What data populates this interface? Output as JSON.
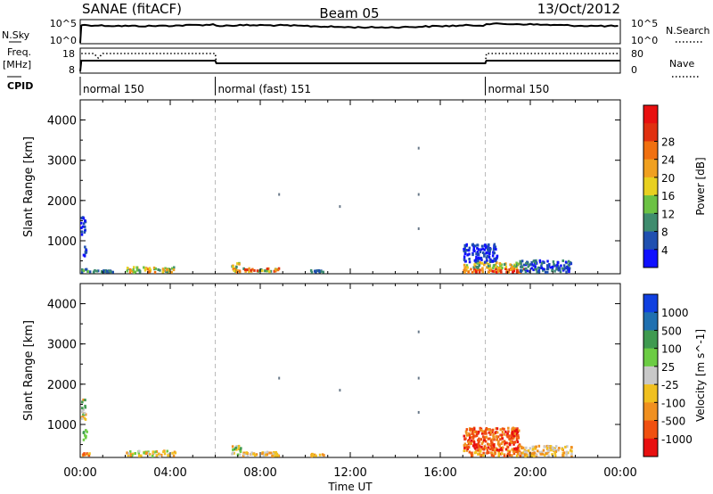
{
  "header": {
    "station": "SANAE (fitACF)",
    "beam": "Beam 05",
    "date": "13/Oct/2012"
  },
  "strip1": {
    "left_label": "N.Sky",
    "right_label": "N.Search",
    "left_ticks": [
      "10^5",
      "10^0"
    ],
    "right_ticks": [
      "10^5",
      "10^0"
    ]
  },
  "strip2": {
    "left_label_1": "Freq.",
    "left_label_2": "[MHz]",
    "right_label": "Nave",
    "left_ticks": [
      "18",
      "8"
    ],
    "right_ticks": [
      "80",
      "0"
    ]
  },
  "cpid": {
    "label": "CPID",
    "segments": [
      {
        "name": "normal 150",
        "start_h": 0,
        "end_h": 6
      },
      {
        "name": "normal (fast) 151",
        "start_h": 6,
        "end_h": 18
      },
      {
        "name": "normal 150",
        "start_h": 18,
        "end_h": 24
      }
    ]
  },
  "chart_data": [
    {
      "type": "heatmap",
      "quantity": "power",
      "ylabel": "Slant Range [km]",
      "ylim": [
        180,
        4500
      ],
      "xlim": [
        0,
        24
      ],
      "yticks": [
        "1000",
        "2000",
        "3000",
        "4000"
      ],
      "colorbar_label": "Power [dB]",
      "colorbar_ticks": [
        "4",
        "8",
        "12",
        "16",
        "20",
        "24",
        "28"
      ],
      "colors": [
        "#1010ff",
        "#2050b0",
        "#3f8c6e",
        "#6cc244",
        "#e8d020",
        "#f0a020",
        "#f07010",
        "#e03010",
        "#e81010"
      ],
      "blobs": [
        {
          "x0": 0.0,
          "x1": 0.4,
          "r0": 200,
          "r1": 280,
          "levels": [
            1,
            3
          ]
        },
        {
          "x0": 0.1,
          "x1": 0.3,
          "r0": 600,
          "r1": 850,
          "levels": [
            0,
            1
          ]
        },
        {
          "x0": 0.0,
          "x1": 0.2,
          "r0": 1100,
          "r1": 1600,
          "levels": [
            0,
            1
          ]
        },
        {
          "x0": 0.5,
          "x1": 1.5,
          "r0": 200,
          "r1": 250,
          "levels": [
            1,
            2
          ]
        },
        {
          "x0": 2.0,
          "x1": 4.2,
          "r0": 200,
          "r1": 330,
          "levels": [
            2,
            6
          ]
        },
        {
          "x0": 6.7,
          "x1": 7.1,
          "r0": 200,
          "r1": 450,
          "levels": [
            2,
            6
          ]
        },
        {
          "x0": 7.2,
          "x1": 8.8,
          "r0": 200,
          "r1": 300,
          "levels": [
            2,
            7
          ]
        },
        {
          "x0": 10.2,
          "x1": 10.8,
          "r0": 200,
          "r1": 250,
          "levels": [
            1,
            2
          ]
        },
        {
          "x0": 17.0,
          "x1": 19.8,
          "r0": 200,
          "r1": 300,
          "levels": [
            5,
            8
          ]
        },
        {
          "x0": 17.0,
          "x1": 19.5,
          "r0": 300,
          "r1": 450,
          "levels": [
            2,
            5
          ]
        },
        {
          "x0": 17.0,
          "x1": 18.5,
          "r0": 450,
          "r1": 900,
          "levels": [
            0,
            1
          ]
        },
        {
          "x0": 19.5,
          "x1": 21.8,
          "r0": 200,
          "r1": 500,
          "levels": [
            0,
            2
          ]
        }
      ],
      "sparse_points": [
        [
          8.8,
          2150
        ],
        [
          11.5,
          1850
        ],
        [
          15.0,
          3300
        ],
        [
          15.0,
          2150
        ],
        [
          15.0,
          1300
        ]
      ]
    },
    {
      "type": "heatmap",
      "quantity": "velocity",
      "ylabel": "Slant Range [km]",
      "ylim": [
        180,
        4500
      ],
      "xlim": [
        0,
        24
      ],
      "yticks": [
        "1000",
        "2000",
        "3000",
        "4000"
      ],
      "xticks": [
        "00:00",
        "04:00",
        "08:00",
        "12:00",
        "16:00",
        "20:00",
        "00:00"
      ],
      "xlabel": "Time UT",
      "colorbar_label": "Velocity [m s^-1]",
      "colorbar_ticks": [
        "1000",
        "500",
        "100",
        "25",
        "-25",
        "-100",
        "-500",
        "-1000"
      ],
      "colors": [
        "#1040e0",
        "#2070b0",
        "#3f9a50",
        "#6ccc44",
        "#c8c8c8",
        "#f0c020",
        "#f09020",
        "#f05010",
        "#e81010"
      ],
      "blobs": [
        {
          "x0": 0.0,
          "x1": 0.4,
          "r0": 200,
          "r1": 280,
          "levels": [
            5,
            7
          ]
        },
        {
          "x0": 0.1,
          "x1": 0.3,
          "r0": 600,
          "r1": 850,
          "levels": [
            2,
            3
          ]
        },
        {
          "x0": 0.0,
          "x1": 0.2,
          "r0": 1100,
          "r1": 1600,
          "levels": [
            2,
            6
          ]
        },
        {
          "x0": 2.0,
          "x1": 4.2,
          "r0": 200,
          "r1": 330,
          "levels": [
            3,
            6
          ]
        },
        {
          "x0": 6.7,
          "x1": 7.1,
          "r0": 200,
          "r1": 450,
          "levels": [
            2,
            6
          ]
        },
        {
          "x0": 7.2,
          "x1": 8.8,
          "r0": 200,
          "r1": 300,
          "levels": [
            4,
            6
          ]
        },
        {
          "x0": 10.2,
          "x1": 10.8,
          "r0": 200,
          "r1": 250,
          "levels": [
            5,
            6
          ]
        },
        {
          "x0": 17.0,
          "x1": 19.8,
          "r0": 200,
          "r1": 350,
          "levels": [
            5,
            7
          ]
        },
        {
          "x0": 17.0,
          "x1": 19.5,
          "r0": 350,
          "r1": 900,
          "levels": [
            6,
            8
          ]
        },
        {
          "x0": 19.5,
          "x1": 21.8,
          "r0": 200,
          "r1": 450,
          "levels": [
            4,
            6
          ]
        }
      ],
      "sparse_points": [
        [
          8.8,
          2150
        ],
        [
          11.5,
          1850
        ],
        [
          15.0,
          3300
        ],
        [
          15.0,
          2150
        ],
        [
          15.0,
          1300
        ]
      ]
    }
  ]
}
